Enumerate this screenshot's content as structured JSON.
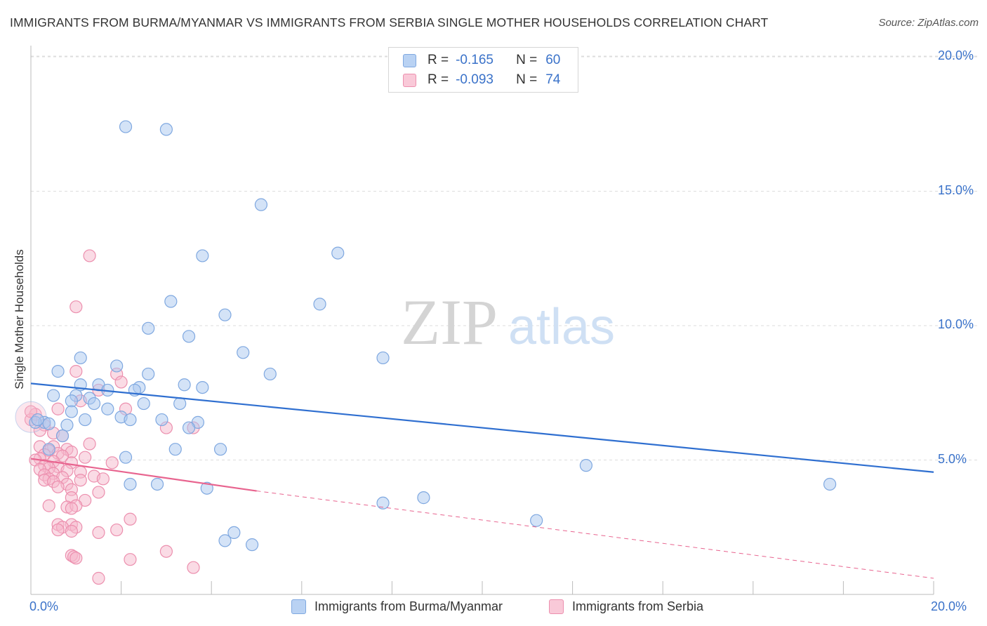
{
  "header": {
    "title": "IMMIGRANTS FROM BURMA/MYANMAR VS IMMIGRANTS FROM SERBIA SINGLE MOTHER HOUSEHOLDS CORRELATION CHART",
    "source": "Source: ZipAtlas.com"
  },
  "watermark": {
    "zip": "ZIP",
    "atlas": "atlas"
  },
  "legend": {
    "r_label": "R =",
    "n_label": "N =",
    "series1": {
      "r": "-0.165",
      "n": "60"
    },
    "series2": {
      "r": "-0.093",
      "n": "74"
    }
  },
  "colors": {
    "series1_fill": "#aac8f0",
    "series1_stroke": "#7fa8e0",
    "series1_line": "#2f6fd0",
    "series2_fill": "#f6b8cc",
    "series2_stroke": "#ec8fae",
    "series2_line": "#e8648f",
    "tick_text": "#3a72c9",
    "grid": "#dddddd"
  },
  "chart_data": {
    "type": "scatter",
    "title": "IMMIGRANTS FROM BURMA/MYANMAR VS IMMIGRANTS FROM SERBIA SINGLE MOTHER HOUSEHOLDS CORRELATION CHART",
    "xlabel": "",
    "ylabel": "Single Mother Households",
    "xlim": [
      0,
      20
    ],
    "ylim": [
      0,
      21
    ],
    "x_tick_labels": [
      "0.0%",
      "20.0%"
    ],
    "y_ticks": [
      5,
      10,
      15,
      20
    ],
    "y_tick_labels": [
      "5.0%",
      "10.0%",
      "15.0%",
      "20.0%"
    ],
    "grid": true,
    "series": [
      {
        "name": "Immigrants from Burma/Myanmar",
        "R": -0.165,
        "N": 60,
        "trend": {
          "x": [
            0,
            20
          ],
          "y": [
            7.85,
            4.55
          ]
        },
        "points": [
          [
            2.1,
            17.4
          ],
          [
            3.0,
            17.3
          ],
          [
            5.1,
            14.5
          ],
          [
            3.8,
            12.6
          ],
          [
            6.8,
            12.7
          ],
          [
            3.1,
            10.9
          ],
          [
            6.4,
            10.8
          ],
          [
            4.3,
            10.4
          ],
          [
            2.6,
            9.9
          ],
          [
            3.5,
            9.6
          ],
          [
            4.7,
            9.0
          ],
          [
            7.8,
            8.8
          ],
          [
            1.1,
            8.8
          ],
          [
            1.9,
            8.5
          ],
          [
            0.6,
            8.3
          ],
          [
            2.6,
            8.2
          ],
          [
            5.3,
            8.2
          ],
          [
            1.1,
            7.8
          ],
          [
            1.5,
            7.8
          ],
          [
            3.4,
            7.8
          ],
          [
            2.4,
            7.7
          ],
          [
            3.8,
            7.7
          ],
          [
            1.7,
            7.6
          ],
          [
            2.3,
            7.6
          ],
          [
            0.5,
            7.4
          ],
          [
            1.0,
            7.4
          ],
          [
            1.3,
            7.3
          ],
          [
            0.9,
            7.2
          ],
          [
            1.4,
            7.1
          ],
          [
            2.5,
            7.1
          ],
          [
            3.3,
            7.1
          ],
          [
            1.7,
            6.9
          ],
          [
            0.9,
            6.8
          ],
          [
            2.0,
            6.6
          ],
          [
            2.2,
            6.5
          ],
          [
            1.2,
            6.5
          ],
          [
            0.3,
            6.4
          ],
          [
            2.9,
            6.5
          ],
          [
            0.1,
            6.4
          ],
          [
            0.4,
            6.35
          ],
          [
            0.8,
            6.3
          ],
          [
            3.7,
            6.4
          ],
          [
            3.5,
            6.2
          ],
          [
            0.7,
            5.9
          ],
          [
            0.4,
            5.4
          ],
          [
            3.2,
            5.4
          ],
          [
            4.2,
            5.4
          ],
          [
            2.1,
            5.1
          ],
          [
            12.3,
            4.8
          ],
          [
            17.7,
            4.1
          ],
          [
            2.2,
            4.1
          ],
          [
            2.8,
            4.1
          ],
          [
            3.9,
            3.95
          ],
          [
            7.8,
            3.4
          ],
          [
            8.7,
            3.6
          ],
          [
            11.2,
            2.75
          ],
          [
            4.5,
            2.3
          ],
          [
            4.3,
            2.0
          ],
          [
            4.9,
            1.85
          ],
          [
            0.15,
            6.5
          ]
        ]
      },
      {
        "name": "Immigrants from Serbia",
        "R": -0.093,
        "N": 74,
        "trend": {
          "x": [
            0,
            5
          ],
          "y": [
            5.05,
            3.85
          ]
        },
        "trend_dashed": {
          "x": [
            5,
            20
          ],
          "y": [
            3.85,
            0.6
          ]
        },
        "points": [
          [
            1.3,
            12.6
          ],
          [
            1.0,
            10.7
          ],
          [
            1.0,
            8.3
          ],
          [
            1.9,
            8.2
          ],
          [
            2.0,
            7.9
          ],
          [
            1.5,
            7.6
          ],
          [
            1.1,
            7.2
          ],
          [
            0.6,
            6.9
          ],
          [
            2.1,
            6.9
          ],
          [
            0.1,
            6.7
          ],
          [
            0.0,
            6.5
          ],
          [
            0.3,
            6.3
          ],
          [
            0.2,
            6.1
          ],
          [
            3.0,
            6.2
          ],
          [
            3.6,
            6.2
          ],
          [
            0.5,
            6.0
          ],
          [
            0.7,
            5.9
          ],
          [
            1.3,
            5.6
          ],
          [
            0.2,
            5.5
          ],
          [
            0.5,
            5.5
          ],
          [
            0.8,
            5.4
          ],
          [
            0.4,
            5.35
          ],
          [
            0.9,
            5.3
          ],
          [
            0.6,
            5.25
          ],
          [
            0.3,
            5.2
          ],
          [
            0.7,
            5.15
          ],
          [
            1.2,
            5.1
          ],
          [
            0.2,
            5.05
          ],
          [
            0.1,
            5.0
          ],
          [
            0.5,
            4.95
          ],
          [
            0.9,
            4.9
          ],
          [
            1.8,
            4.9
          ],
          [
            0.3,
            4.8
          ],
          [
            0.6,
            4.75
          ],
          [
            0.4,
            4.7
          ],
          [
            0.2,
            4.65
          ],
          [
            0.8,
            4.6
          ],
          [
            1.1,
            4.55
          ],
          [
            0.5,
            4.5
          ],
          [
            0.3,
            4.45
          ],
          [
            1.4,
            4.4
          ],
          [
            0.7,
            4.35
          ],
          [
            0.4,
            4.3
          ],
          [
            1.6,
            4.3
          ],
          [
            0.3,
            4.25
          ],
          [
            0.5,
            4.2
          ],
          [
            1.1,
            4.25
          ],
          [
            0.8,
            4.1
          ],
          [
            0.6,
            4.0
          ],
          [
            0.9,
            3.9
          ],
          [
            1.5,
            3.8
          ],
          [
            0.9,
            3.6
          ],
          [
            1.2,
            3.5
          ],
          [
            0.4,
            3.3
          ],
          [
            0.8,
            3.25
          ],
          [
            1.0,
            3.3
          ],
          [
            0.9,
            3.2
          ],
          [
            2.2,
            2.8
          ],
          [
            0.6,
            2.6
          ],
          [
            0.9,
            2.6
          ],
          [
            0.7,
            2.5
          ],
          [
            1.0,
            2.5
          ],
          [
            0.6,
            2.4
          ],
          [
            0.9,
            2.35
          ],
          [
            1.5,
            2.3
          ],
          [
            1.9,
            2.4
          ],
          [
            0.9,
            1.45
          ],
          [
            0.95,
            1.4
          ],
          [
            1.0,
            1.35
          ],
          [
            2.2,
            1.3
          ],
          [
            3.0,
            1.6
          ],
          [
            3.6,
            1.0
          ],
          [
            1.5,
            0.6
          ],
          [
            0.0,
            6.8
          ]
        ]
      }
    ]
  }
}
